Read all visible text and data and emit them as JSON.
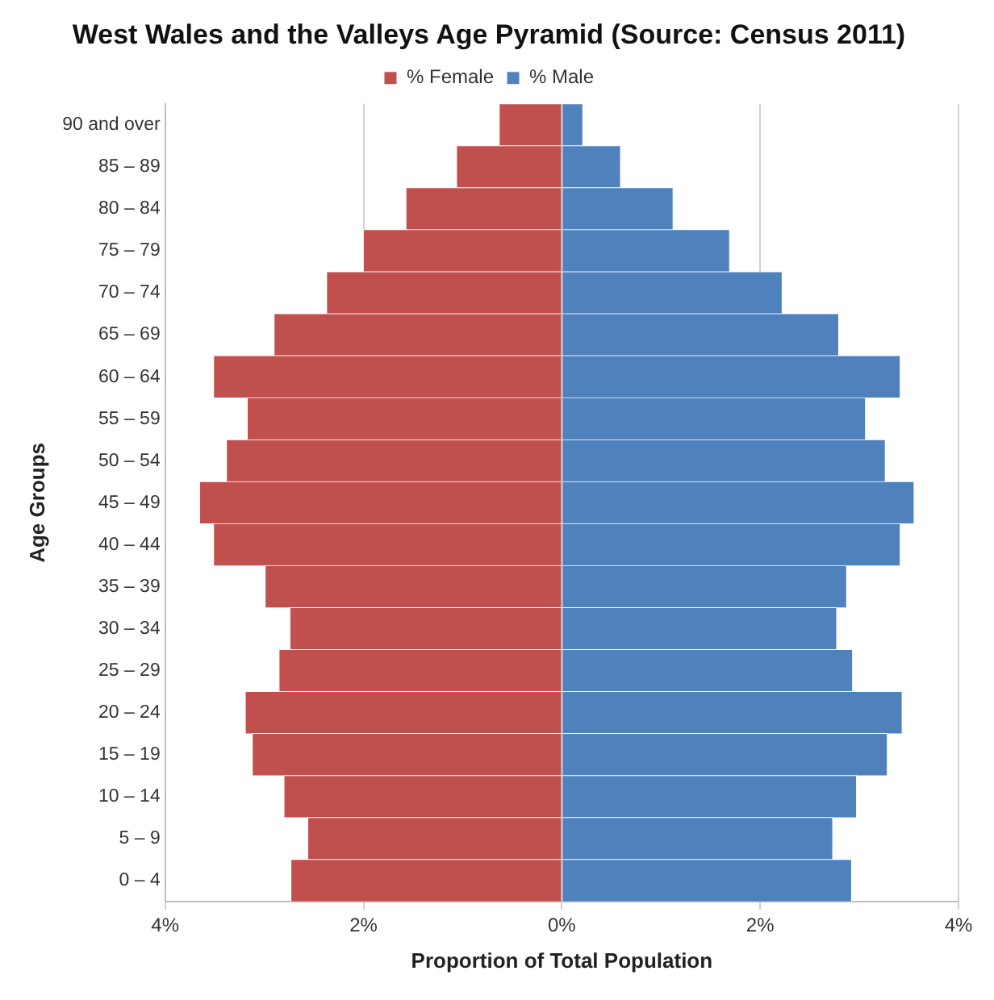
{
  "chart_data": {
    "type": "bar",
    "orientation": "horizontal",
    "stacked": true,
    "title": "West Wales and the Valleys Age Pyramid (Source: Census 2011)",
    "xlabel": "Proportion of Total Population",
    "ylabel": "Age Groups",
    "categories": [
      "90 and over",
      "85 – 89",
      "80 – 84",
      "75 – 79",
      "70 – 74",
      "65 – 69",
      "60 – 64",
      "55 – 59",
      "50 – 54",
      "45 – 49",
      "40 – 44",
      "35 – 39",
      "30 – 34",
      "25 – 29",
      "20 – 24",
      "15 – 19",
      "10 – 14",
      "5 – 9",
      "0 – 4"
    ],
    "series": [
      {
        "name": "% Female",
        "color": "#c0504d",
        "values": [
          -0.63,
          -1.06,
          -1.57,
          -2.0,
          -2.37,
          -2.9,
          -3.51,
          -3.17,
          -3.38,
          -3.65,
          -3.51,
          -2.99,
          -2.74,
          -2.85,
          -3.19,
          -3.12,
          -2.8,
          -2.56,
          -2.73
        ]
      },
      {
        "name": "% Male",
        "color": "#4f81bd",
        "values": [
          0.21,
          0.59,
          1.12,
          1.69,
          2.22,
          2.79,
          3.41,
          3.06,
          3.26,
          3.55,
          3.41,
          2.87,
          2.77,
          2.93,
          3.43,
          3.28,
          2.97,
          2.73,
          2.92
        ]
      }
    ],
    "xlim": [
      -4,
      4
    ],
    "xticks": [
      {
        "value": -4,
        "label": "4%"
      },
      {
        "value": -2,
        "label": "2%"
      },
      {
        "value": 0,
        "label": "0%"
      },
      {
        "value": 2,
        "label": "2%"
      },
      {
        "value": 4,
        "label": "4%"
      }
    ],
    "grid": "x",
    "legend": "top"
  }
}
